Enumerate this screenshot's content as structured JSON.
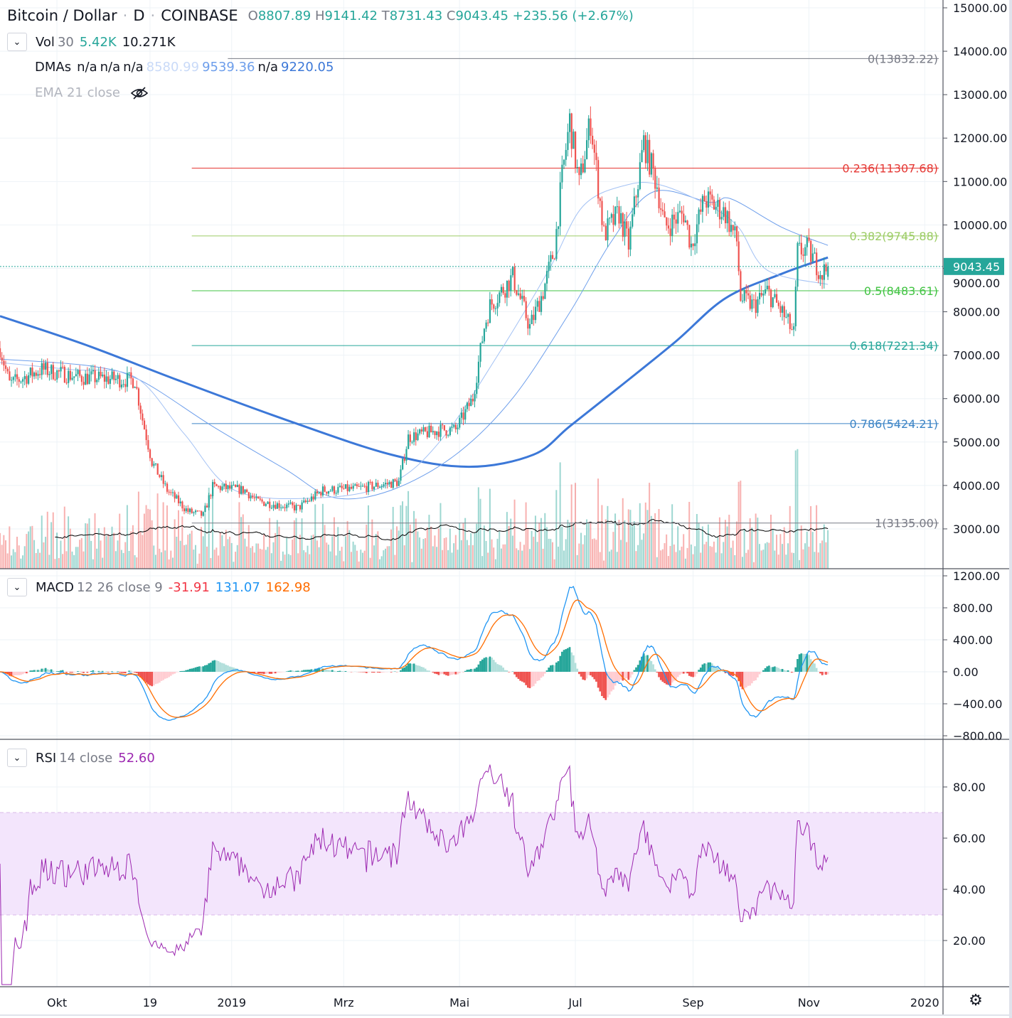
{
  "header": {
    "symbol": "Bitcoin / Dollar",
    "interval": "D",
    "exchange": "COINBASE",
    "dot": "·",
    "ohlc": [
      {
        "letter": "O",
        "value": "8807.89"
      },
      {
        "letter": "H",
        "value": "9141.42"
      },
      {
        "letter": "T",
        "value": "8731.43"
      },
      {
        "letter": "C",
        "value": "9043.45"
      }
    ],
    "change": "+235.56 (+2.67%)"
  },
  "legends": {
    "vol": {
      "name": "Vol",
      "param": "30",
      "v1": "5.42K",
      "v2": "10.271K"
    },
    "dmas": {
      "name": "DMAs",
      "values": [
        "n/a",
        "n/a",
        "n/a",
        "8580.99",
        "9539.36",
        "n/a",
        "9220.05"
      ]
    },
    "ema": {
      "name": "EMA 21 close",
      "icon": "eye-crossed-icon"
    },
    "macd": {
      "name": "MACD",
      "params": "12 26 close 9",
      "hist": "-31.91",
      "macd": "131.07",
      "signal": "162.98"
    },
    "rsi": {
      "name": "RSI",
      "params": "14 close",
      "value": "52.60"
    }
  },
  "colors": {
    "up": "#26a69a",
    "down": "#ef5350",
    "ma_thick": "#3c78d8",
    "ma_medium": "#6d9eeb",
    "ma_light": "#a4c2f4",
    "macd": "#2196f3",
    "signal": "#ff6d00",
    "rsi": "#9c27b0",
    "rsi_band": "#f3e5fc",
    "last_price": "#26a69a"
  },
  "chart_data": {
    "type": "candlestick",
    "price_axis": {
      "ylim": [
        2400,
        15200
      ],
      "ticks": [
        "15000.00",
        "14000.00",
        "13000.00",
        "12000.00",
        "11000.00",
        "10000.00",
        "9000.00",
        "8000.00",
        "7000.00",
        "6000.00",
        "5000.00",
        "4000.00",
        "3000.00"
      ],
      "tick_values": [
        15000,
        14000,
        13000,
        12000,
        11000,
        10000,
        9000,
        8000,
        7000,
        6000,
        5000,
        4000,
        3000
      ]
    },
    "last_price": {
      "value": 9043.45,
      "label": "9043.45"
    },
    "last_candle": {
      "open": 8807.89,
      "high": 9141.42,
      "low": 8731.43,
      "close": 9043.45
    },
    "close_approx": [
      [
        "2018-09-01",
        7160
      ],
      [
        "2018-09-06",
        6340
      ],
      [
        "2018-09-23",
        6670
      ],
      [
        "2018-10-12",
        6500
      ],
      [
        "2018-11-11",
        6420
      ],
      [
        "2018-11-15",
        5520
      ],
      [
        "2018-11-20",
        4540
      ],
      [
        "2018-11-28",
        3890
      ],
      [
        "2018-12-09",
        3400
      ],
      [
        "2018-12-17",
        3310
      ],
      [
        "2018-12-22",
        3970
      ],
      [
        "2019-01-08",
        3890
      ],
      [
        "2019-01-14",
        3640
      ],
      [
        "2019-02-05",
        3480
      ],
      [
        "2019-02-18",
        3890
      ],
      [
        "2019-03-07",
        3920
      ],
      [
        "2019-03-30",
        4080
      ],
      [
        "2019-04-04",
        5110
      ],
      [
        "2019-04-21",
        5280
      ],
      [
        "2019-04-29",
        5280
      ],
      [
        "2019-05-08",
        6010
      ],
      [
        "2019-05-14",
        7650
      ],
      [
        "2019-05-17",
        8140
      ],
      [
        "2019-05-29",
        8800
      ],
      [
        "2019-06-07",
        7650
      ],
      [
        "2019-06-14",
        8470
      ],
      [
        "2019-06-20",
        9450
      ],
      [
        "2019-06-24",
        11090
      ],
      [
        "2019-06-28",
        12400
      ],
      [
        "2019-07-03",
        10920
      ],
      [
        "2019-07-09",
        12400
      ],
      [
        "2019-07-16",
        9780
      ],
      [
        "2019-07-24",
        10270
      ],
      [
        "2019-07-29",
        9530
      ],
      [
        "2019-08-06",
        11900
      ],
      [
        "2019-08-13",
        10920
      ],
      [
        "2019-08-17",
        9940
      ],
      [
        "2019-08-27",
        10270
      ],
      [
        "2019-08-31",
        9530
      ],
      [
        "2019-09-07",
        10600
      ],
      [
        "2019-09-18",
        10270
      ],
      [
        "2019-09-24",
        9620
      ],
      [
        "2019-09-26",
        8310
      ],
      [
        "2019-10-03",
        8140
      ],
      [
        "2019-10-10",
        8470
      ],
      [
        "2019-10-18",
        7980
      ],
      [
        "2019-10-24",
        7490
      ],
      [
        "2019-10-26",
        9370
      ],
      [
        "2019-10-31",
        9450
      ],
      [
        "2019-11-08",
        8880
      ],
      [
        "2019-11-11",
        9043.45
      ]
    ],
    "moving_averages": [
      {
        "name": "thick",
        "last": "9220.05",
        "points": [
          [
            "2018-09-01",
            7900
          ],
          [
            "2018-10-16",
            7240
          ],
          [
            "2018-12-04",
            6420
          ],
          [
            "2019-01-29",
            5520
          ],
          [
            "2019-03-26",
            4710
          ],
          [
            "2019-05-06",
            4430
          ],
          [
            "2019-06-09",
            4710
          ],
          [
            "2019-06-28",
            5360
          ],
          [
            "2019-07-24",
            6260
          ],
          [
            "2019-08-23",
            7320
          ],
          [
            "2019-09-18",
            8310
          ],
          [
            "2019-10-18",
            8880
          ],
          [
            "2019-11-11",
            9250
          ]
        ]
      },
      {
        "name": "medium",
        "last": "9539.36",
        "points": [
          [
            "2018-09-01",
            6910
          ],
          [
            "2018-10-19",
            6750
          ],
          [
            "2018-11-14",
            6420
          ],
          [
            "2018-12-22",
            5360
          ],
          [
            "2019-01-29",
            4380
          ],
          [
            "2019-02-24",
            3720
          ],
          [
            "2019-03-26",
            3890
          ],
          [
            "2019-04-29",
            4710
          ],
          [
            "2019-05-29",
            6010
          ],
          [
            "2019-06-28",
            7980
          ],
          [
            "2019-07-20",
            9620
          ],
          [
            "2019-08-11",
            10760
          ],
          [
            "2019-09-10",
            10520
          ],
          [
            "2019-09-21",
            10600
          ],
          [
            "2019-10-18",
            9940
          ],
          [
            "2019-11-11",
            9530
          ]
        ]
      },
      {
        "name": "light",
        "last": "8580.99",
        "points": [
          [
            "2018-09-01",
            6830
          ],
          [
            "2018-10-08",
            6670
          ],
          [
            "2018-11-11",
            6500
          ],
          [
            "2018-12-07",
            5190
          ],
          [
            "2019-01-03",
            3880
          ],
          [
            "2019-02-18",
            3720
          ],
          [
            "2019-03-26",
            4050
          ],
          [
            "2019-04-21",
            5030
          ],
          [
            "2019-05-21",
            6990
          ],
          [
            "2019-06-17",
            8960
          ],
          [
            "2019-07-05",
            10430
          ],
          [
            "2019-07-28",
            10920
          ],
          [
            "2019-08-15",
            10920
          ],
          [
            "2019-09-10",
            10430
          ],
          [
            "2019-09-25",
            9940
          ],
          [
            "2019-10-10",
            8960
          ],
          [
            "2019-11-11",
            8630
          ]
        ]
      }
    ],
    "fibonacci": [
      {
        "ratio": 0,
        "value": 13832.22,
        "label": "0(13832.22)",
        "color": "#787b86",
        "from": "2018-12-30"
      },
      {
        "ratio": 0.236,
        "value": 11307.68,
        "label": "0.236(11307.68)",
        "color": "#e53935",
        "from": "2018-12-11"
      },
      {
        "ratio": 0.382,
        "value": 9745.88,
        "label": "0.382(9745.88)",
        "color": "#9ccc65",
        "from": "2018-12-11"
      },
      {
        "ratio": 0.5,
        "value": 8483.61,
        "label": "0.5(8483.61)",
        "color": "#43c444",
        "from": "2018-12-11"
      },
      {
        "ratio": 0.618,
        "value": 7221.34,
        "label": "0.618(7221.34)",
        "color": "#26a69a",
        "from": "2018-12-11"
      },
      {
        "ratio": 0.786,
        "value": 5424.21,
        "label": "0.786(5424.21)",
        "color": "#3d85c6",
        "from": "2018-12-11"
      },
      {
        "ratio": 1,
        "value": 3135.0,
        "label": "1(3135.00)",
        "color": "#787b86",
        "from": "2018-12-11"
      }
    ],
    "macd_axis": {
      "ticks": [
        "1200.00",
        "800.00",
        "400.00",
        "0.00",
        "−400.00",
        "−800.00"
      ],
      "tick_values": [
        1200,
        800,
        400,
        0,
        -400,
        -800
      ]
    },
    "rsi_axis": {
      "ticks": [
        "80.00",
        "60.00",
        "40.00",
        "20.00"
      ],
      "tick_values": [
        80,
        60,
        40,
        20
      ],
      "band": [
        30,
        70
      ]
    },
    "time_axis": [
      {
        "label": "Okt",
        "date": "2018-10-01"
      },
      {
        "label": "19",
        "date": "2018-11-19"
      },
      {
        "label": "2019",
        "date": "2019-01-01"
      },
      {
        "label": "Mrz",
        "date": "2019-03-01"
      },
      {
        "label": "Mai",
        "date": "2019-05-01"
      },
      {
        "label": "Jul",
        "date": "2019-07-01"
      },
      {
        "label": "Sep",
        "date": "2019-09-01"
      },
      {
        "label": "Nov",
        "date": "2019-11-01"
      },
      {
        "label": "2020",
        "date": "2020-01-01"
      }
    ]
  }
}
